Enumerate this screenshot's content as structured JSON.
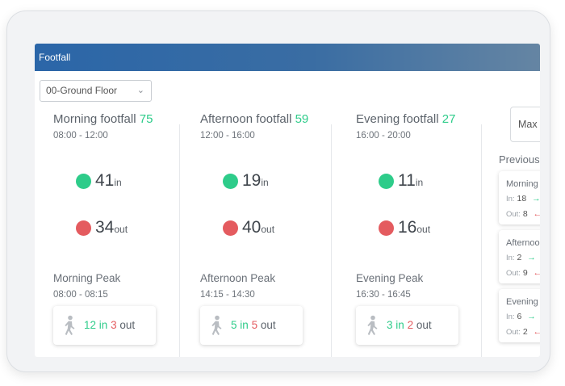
{
  "header": {
    "title": "Footfall"
  },
  "floor_select": {
    "value": "00-Ground Floor"
  },
  "periods": [
    {
      "title": "Morning footfall",
      "total": "75",
      "time": "08:00 - 12:00",
      "in": "41",
      "out": "34",
      "peak_title": "Morning Peak",
      "peak_time": "08:00 - 08:15",
      "peak_in": "12",
      "peak_out": "3"
    },
    {
      "title": "Afternoon footfall",
      "total": "59",
      "time": "12:00 - 16:00",
      "in": "19",
      "out": "40",
      "peak_title": "Afternoon Peak",
      "peak_time": "14:15 - 14:30",
      "peak_in": "5",
      "peak_out": "5"
    },
    {
      "title": "Evening footfall",
      "total": "27",
      "time": "16:00 - 20:00",
      "in": "11",
      "out": "16",
      "peak_title": "Evening Peak",
      "peak_time": "16:30 - 16:45",
      "peak_in": "3",
      "peak_out": "2"
    }
  ],
  "labels": {
    "in_unit": "in",
    "out_unit": "out",
    "in_word": "in",
    "out_word": "out"
  },
  "max_button": {
    "label": "Max"
  },
  "previous": {
    "title": "Previous",
    "in_label": "In:",
    "out_label": "Out:",
    "arrow_in": "→",
    "arrow_out": "←",
    "cards": [
      {
        "title": "Morning",
        "in": "18",
        "out": "8"
      },
      {
        "title": "Afternoon",
        "in": "2",
        "out": "9"
      },
      {
        "title": "Evening",
        "in": "6",
        "out": "2"
      }
    ]
  },
  "colors": {
    "in": "#2ecc8a",
    "out": "#e45b5f",
    "header_start": "#2b66a8",
    "header_end": "#6585a3"
  }
}
